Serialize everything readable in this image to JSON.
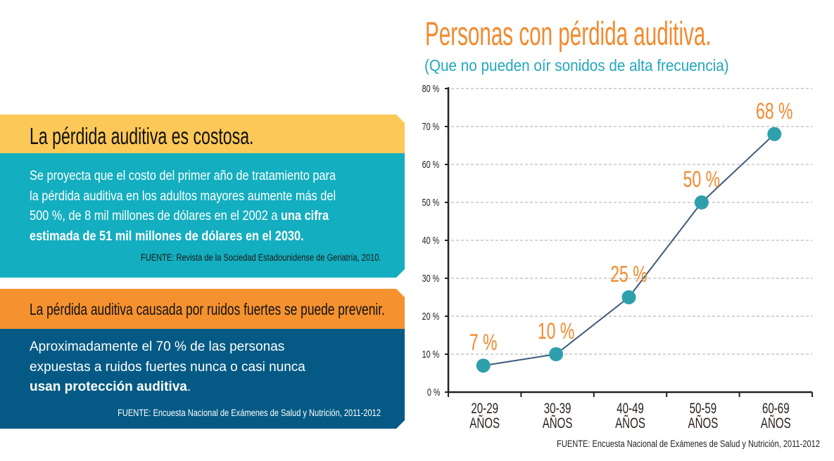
{
  "panel1": {
    "heading": "La pérdida auditiva es costosa.",
    "lines": [
      "Se proyecta que el costo del primer año de tratamiento para",
      "la pérdida auditiva en los adultos mayores aumente más del",
      "500 %, de 8 mil millones de dólares en el 2002 a "
    ],
    "bold1": "una cifra",
    "bold2": "estimada de 51 mil millones de dólares en el 2030.",
    "source": "FUENTE: Revista de la Sociedad Estadounidense de Geriatría, 2010."
  },
  "panel2": {
    "heading": "La pérdida auditiva causada por ruidos fuertes se puede prevenir.",
    "lines": [
      "Aproximadamente el 70 % de las personas",
      "expuestas a ruidos fuertes nunca o casi nunca"
    ],
    "bold": "usan protección auditiva",
    "end": ".",
    "source": "FUENTE: Encuesta Nacional de Exámenes de Salud y Nutrición, 2011-2012"
  },
  "colors": {
    "yellow": "#fcc857",
    "teal": "#13aebf",
    "orange": "#f5922f",
    "navy": "#045a84",
    "label": "#f28a2e",
    "dot": "#2ea0ac",
    "line": "#3d5a7a"
  },
  "chart_data": {
    "type": "line",
    "title": "Personas con pérdida auditiva.",
    "subtitle": "(Que no pueden oír sonidos de alta frecuencia)",
    "categories": [
      [
        "20-29",
        "AÑOS"
      ],
      [
        "30-39",
        "AÑOS"
      ],
      [
        "40-49",
        "AÑOS"
      ],
      [
        "50-59",
        "AÑOS"
      ],
      [
        "60-69",
        "AÑOS"
      ]
    ],
    "values": [
      7,
      10,
      25,
      50,
      68
    ],
    "data_labels": [
      "7 %",
      "10 %",
      "25 %",
      "50 %",
      "68 %"
    ],
    "yticks": [
      "0 %",
      "10 %",
      "20 %",
      "30 %",
      "40 %",
      "50 %",
      "60 %",
      "70 %",
      "80 %"
    ],
    "ylim": [
      0,
      80
    ],
    "grid": "horizontal dashed",
    "source": "FUENTE: Encuesta Nacional de Exámenes de Salud y Nutrición, 2011-2012"
  }
}
